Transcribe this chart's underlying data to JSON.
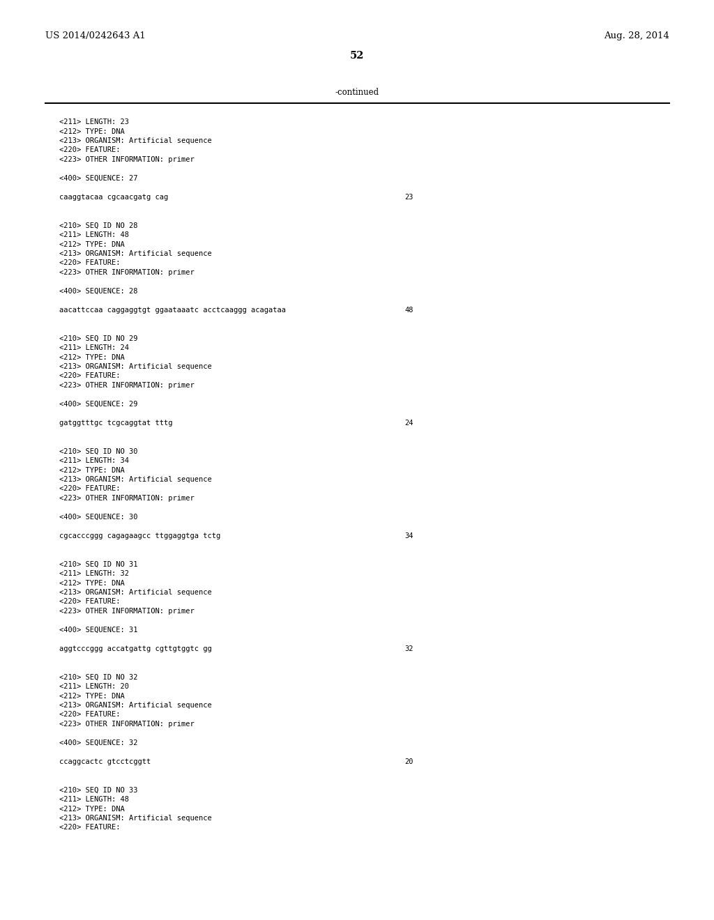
{
  "bg_color": "#ffffff",
  "header_left": "US 2014/0242643 A1",
  "header_right": "Aug. 28, 2014",
  "page_number": "52",
  "continued_label": "-continued",
  "header_fontsize": 9.5,
  "page_num_fontsize": 10.5,
  "continued_fontsize": 8.5,
  "mono_fontsize": 7.5,
  "content_lines": [
    {
      "text": "<211> LENGTH: 23",
      "num": null
    },
    {
      "text": "<212> TYPE: DNA",
      "num": null
    },
    {
      "text": "<213> ORGANISM: Artificial sequence",
      "num": null
    },
    {
      "text": "<220> FEATURE:",
      "num": null
    },
    {
      "text": "<223> OTHER INFORMATION: primer",
      "num": null
    },
    {
      "text": "",
      "num": null
    },
    {
      "text": "<400> SEQUENCE: 27",
      "num": null
    },
    {
      "text": "",
      "num": null
    },
    {
      "text": "caaggtacaa cgcaacgatg cag",
      "num": "23"
    },
    {
      "text": "",
      "num": null
    },
    {
      "text": "",
      "num": null
    },
    {
      "text": "<210> SEQ ID NO 28",
      "num": null
    },
    {
      "text": "<211> LENGTH: 48",
      "num": null
    },
    {
      "text": "<212> TYPE: DNA",
      "num": null
    },
    {
      "text": "<213> ORGANISM: Artificial sequence",
      "num": null
    },
    {
      "text": "<220> FEATURE:",
      "num": null
    },
    {
      "text": "<223> OTHER INFORMATION: primer",
      "num": null
    },
    {
      "text": "",
      "num": null
    },
    {
      "text": "<400> SEQUENCE: 28",
      "num": null
    },
    {
      "text": "",
      "num": null
    },
    {
      "text": "aacattccaa caggaggtgt ggaataaatc acctcaaggg acagataa",
      "num": "48"
    },
    {
      "text": "",
      "num": null
    },
    {
      "text": "",
      "num": null
    },
    {
      "text": "<210> SEQ ID NO 29",
      "num": null
    },
    {
      "text": "<211> LENGTH: 24",
      "num": null
    },
    {
      "text": "<212> TYPE: DNA",
      "num": null
    },
    {
      "text": "<213> ORGANISM: Artificial sequence",
      "num": null
    },
    {
      "text": "<220> FEATURE:",
      "num": null
    },
    {
      "text": "<223> OTHER INFORMATION: primer",
      "num": null
    },
    {
      "text": "",
      "num": null
    },
    {
      "text": "<400> SEQUENCE: 29",
      "num": null
    },
    {
      "text": "",
      "num": null
    },
    {
      "text": "gatggtttgc tcgcaggtat tttg",
      "num": "24"
    },
    {
      "text": "",
      "num": null
    },
    {
      "text": "",
      "num": null
    },
    {
      "text": "<210> SEQ ID NO 30",
      "num": null
    },
    {
      "text": "<211> LENGTH: 34",
      "num": null
    },
    {
      "text": "<212> TYPE: DNA",
      "num": null
    },
    {
      "text": "<213> ORGANISM: Artificial sequence",
      "num": null
    },
    {
      "text": "<220> FEATURE:",
      "num": null
    },
    {
      "text": "<223> OTHER INFORMATION: primer",
      "num": null
    },
    {
      "text": "",
      "num": null
    },
    {
      "text": "<400> SEQUENCE: 30",
      "num": null
    },
    {
      "text": "",
      "num": null
    },
    {
      "text": "cgcacccggg cagagaagcc ttggaggtga tctg",
      "num": "34"
    },
    {
      "text": "",
      "num": null
    },
    {
      "text": "",
      "num": null
    },
    {
      "text": "<210> SEQ ID NO 31",
      "num": null
    },
    {
      "text": "<211> LENGTH: 32",
      "num": null
    },
    {
      "text": "<212> TYPE: DNA",
      "num": null
    },
    {
      "text": "<213> ORGANISM: Artificial sequence",
      "num": null
    },
    {
      "text": "<220> FEATURE:",
      "num": null
    },
    {
      "text": "<223> OTHER INFORMATION: primer",
      "num": null
    },
    {
      "text": "",
      "num": null
    },
    {
      "text": "<400> SEQUENCE: 31",
      "num": null
    },
    {
      "text": "",
      "num": null
    },
    {
      "text": "aggtcccggg accatgattg cgttgtggtc gg",
      "num": "32"
    },
    {
      "text": "",
      "num": null
    },
    {
      "text": "",
      "num": null
    },
    {
      "text": "<210> SEQ ID NO 32",
      "num": null
    },
    {
      "text": "<211> LENGTH: 20",
      "num": null
    },
    {
      "text": "<212> TYPE: DNA",
      "num": null
    },
    {
      "text": "<213> ORGANISM: Artificial sequence",
      "num": null
    },
    {
      "text": "<220> FEATURE:",
      "num": null
    },
    {
      "text": "<223> OTHER INFORMATION: primer",
      "num": null
    },
    {
      "text": "",
      "num": null
    },
    {
      "text": "<400> SEQUENCE: 32",
      "num": null
    },
    {
      "text": "",
      "num": null
    },
    {
      "text": "ccaggcactc gtcctcggtt",
      "num": "20"
    },
    {
      "text": "",
      "num": null
    },
    {
      "text": "",
      "num": null
    },
    {
      "text": "<210> SEQ ID NO 33",
      "num": null
    },
    {
      "text": "<211> LENGTH: 48",
      "num": null
    },
    {
      "text": "<212> TYPE: DNA",
      "num": null
    },
    {
      "text": "<213> ORGANISM: Artificial sequence",
      "num": null
    },
    {
      "text": "<220> FEATURE:",
      "num": null
    }
  ]
}
